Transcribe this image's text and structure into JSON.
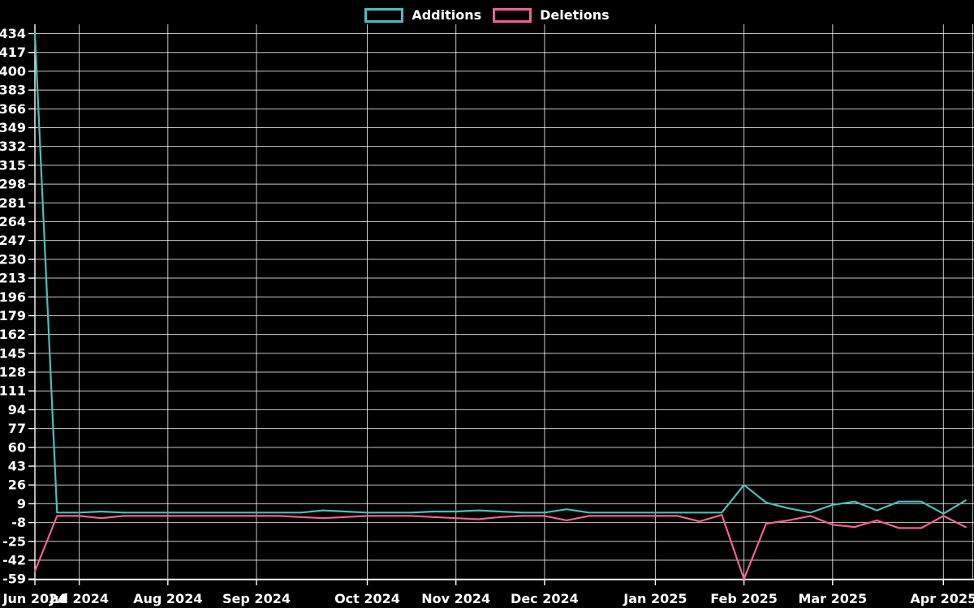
{
  "legend": {
    "items": [
      {
        "label": "Additions",
        "color": "#4bbfba"
      },
      {
        "label": "Deletions",
        "color": "#f2638c"
      }
    ]
  },
  "chart_data": {
    "type": "line",
    "title": "",
    "xlabel": "",
    "ylabel": "",
    "background": "#000000",
    "text_color": "#ffffff",
    "grid": true,
    "legend_position": "top-center",
    "x_unit": "week",
    "weeks": 43,
    "x_tick_labels": [
      "Jun 2024",
      "Jul 2024",
      "Aug 2024",
      "Sep 2024",
      "Oct 2024",
      "Nov 2024",
      "Dec 2024",
      "Jan 2025",
      "Feb 2025",
      "Mar 2025",
      "Apr 2025"
    ],
    "x_tick_weeks": [
      0,
      2,
      6,
      10,
      15,
      19,
      23,
      28,
      32,
      36,
      41
    ],
    "y_ticks": [
      434,
      417,
      400,
      383,
      366,
      349,
      332,
      315,
      298,
      281,
      264,
      247,
      230,
      213,
      196,
      179,
      162,
      145,
      128,
      111,
      94,
      77,
      60,
      43,
      26,
      9,
      -8,
      -25,
      -42,
      -59
    ],
    "ylim": [
      -59,
      434
    ],
    "series": [
      {
        "name": "Deletions",
        "color": "#f2638c",
        "values": [
          -52,
          -2,
          -2,
          -4,
          -2,
          -2,
          -2,
          -2,
          -2,
          -2,
          -2,
          -2,
          -3,
          -4,
          -3,
          -2,
          -2,
          -2,
          -3,
          -4,
          -5,
          -3,
          -2,
          -2,
          -6,
          -2,
          -2,
          -2,
          -2,
          -2,
          -7,
          -1,
          -59,
          -9,
          -6,
          -2,
          -10,
          -12,
          -6,
          -13,
          -13,
          -2,
          -12
        ]
      },
      {
        "name": "Additions",
        "color": "#4bbfba",
        "values": [
          434,
          1,
          1,
          2,
          1,
          1,
          1,
          1,
          1,
          1,
          1,
          1,
          1,
          3,
          2,
          1,
          1,
          1,
          2,
          2,
          3,
          2,
          1,
          1,
          4,
          1,
          1,
          1,
          1,
          1,
          1,
          1,
          26,
          10,
          5,
          1,
          8,
          11,
          3,
          11,
          11,
          0,
          12
        ]
      }
    ]
  }
}
